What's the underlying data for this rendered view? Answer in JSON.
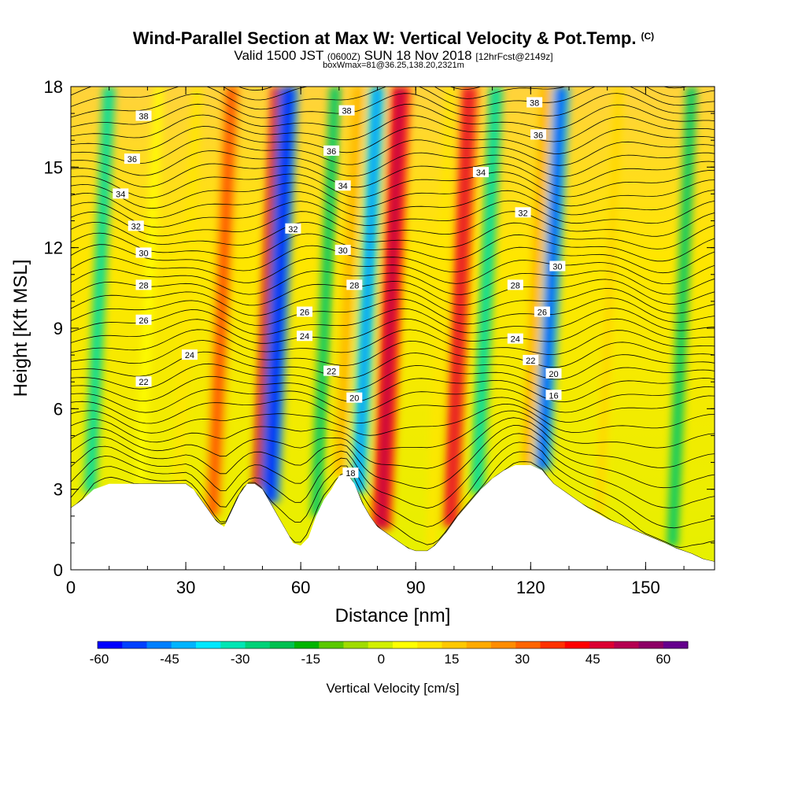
{
  "title": {
    "main": "Wind-Parallel Section at Max W: Vertical Velocity & Pot.Temp.",
    "copyright": "(C)",
    "valid_prefix": "Valid 1500 JST",
    "valid_utc": "(0600Z)",
    "valid_date": "SUN 18 Nov 2018",
    "forecast": "[12hrFcst@2149z]",
    "box_info": "boxWmax=81@36.25,138.20,2321m"
  },
  "chart_data": {
    "type": "heatmap",
    "xlabel": "Distance [nm]",
    "ylabel": "Height [Kft MSL]",
    "xlim": [
      0,
      168
    ],
    "ylim": [
      0,
      18
    ],
    "x_ticks": [
      0,
      30,
      60,
      90,
      120,
      150
    ],
    "y_ticks": [
      0,
      3,
      6,
      9,
      12,
      15,
      18
    ],
    "colorbar": {
      "label": "Vertical Velocity [cm/s]",
      "ticks": [
        -60,
        -45,
        -30,
        -15,
        0,
        15,
        30,
        45,
        60
      ],
      "colors": [
        "#0000ff",
        "#0040ff",
        "#0080ff",
        "#00b4ff",
        "#00e8ff",
        "#00e6b4",
        "#00d278",
        "#00c050",
        "#00b400",
        "#5ac800",
        "#a0dc00",
        "#d2f000",
        "#ffff00",
        "#ffe600",
        "#ffc800",
        "#ffaa00",
        "#ff8c00",
        "#ff6400",
        "#ff3200",
        "#ff0000",
        "#dc0032",
        "#b40050",
        "#8c0064",
        "#64008c"
      ]
    },
    "updrafts": [
      {
        "x": 5,
        "w": -22
      },
      {
        "x": 18,
        "w": 8
      },
      {
        "x": 28,
        "w": 12
      },
      {
        "x": 37,
        "w": 32
      },
      {
        "x": 50,
        "w": 50
      },
      {
        "x": 52,
        "w": -45
      },
      {
        "x": 64,
        "w": -18
      },
      {
        "x": 70,
        "w": 20
      },
      {
        "x": 75,
        "w": -38
      },
      {
        "x": 81,
        "w": 48
      },
      {
        "x": 94,
        "w": 12
      },
      {
        "x": 99,
        "w": 40
      },
      {
        "x": 106,
        "w": -25
      },
      {
        "x": 119,
        "w": 22
      },
      {
        "x": 123,
        "w": -40
      },
      {
        "x": 138,
        "w": 15
      },
      {
        "x": 157,
        "w": -18
      }
    ],
    "terrain_kft": [
      [
        0,
        2.3
      ],
      [
        3,
        2.6
      ],
      [
        6,
        3.0
      ],
      [
        10,
        3.2
      ],
      [
        20,
        3.2
      ],
      [
        30,
        3.2
      ],
      [
        32,
        3.0
      ],
      [
        34,
        2.6
      ],
      [
        36,
        2.2
      ],
      [
        38,
        1.8
      ],
      [
        40,
        1.6
      ],
      [
        42,
        2.2
      ],
      [
        44,
        2.8
      ],
      [
        46,
        3.2
      ],
      [
        48,
        3.2
      ],
      [
        50,
        3.0
      ],
      [
        52,
        2.5
      ],
      [
        54,
        2.0
      ],
      [
        56,
        1.5
      ],
      [
        58,
        1.0
      ],
      [
        60,
        0.9
      ],
      [
        62,
        1.2
      ],
      [
        64,
        2.0
      ],
      [
        66,
        2.6
      ],
      [
        68,
        3.0
      ],
      [
        70,
        3.5
      ],
      [
        72,
        3.6
      ],
      [
        74,
        3.2
      ],
      [
        76,
        2.5
      ],
      [
        78,
        2.0
      ],
      [
        80,
        1.6
      ],
      [
        84,
        1.2
      ],
      [
        88,
        0.8
      ],
      [
        90,
        0.7
      ],
      [
        93,
        0.7
      ],
      [
        95,
        0.9
      ],
      [
        98,
        1.4
      ],
      [
        101,
        2.0
      ],
      [
        104,
        2.5
      ],
      [
        107,
        3.0
      ],
      [
        110,
        3.4
      ],
      [
        113,
        3.7
      ],
      [
        116,
        3.9
      ],
      [
        120,
        3.9
      ],
      [
        123,
        3.7
      ],
      [
        126,
        3.2
      ],
      [
        130,
        2.8
      ],
      [
        135,
        2.3
      ],
      [
        140,
        1.9
      ],
      [
        145,
        1.6
      ],
      [
        150,
        1.3
      ],
      [
        155,
        1.0
      ],
      [
        158,
        0.8
      ],
      [
        162,
        0.6
      ],
      [
        165,
        0.4
      ],
      [
        168,
        0.3
      ]
    ],
    "isentropes_k": [
      16,
      18,
      20,
      22,
      24,
      26,
      28,
      30,
      32,
      34,
      36,
      38
    ],
    "theta_labels": [
      {
        "text": "38",
        "x": 19,
        "y": 16.9
      },
      {
        "text": "36",
        "x": 16,
        "y": 15.3
      },
      {
        "text": "34",
        "x": 13,
        "y": 14.0
      },
      {
        "text": "32",
        "x": 17,
        "y": 12.8
      },
      {
        "text": "30",
        "x": 19,
        "y": 11.8
      },
      {
        "text": "28",
        "x": 19,
        "y": 10.6
      },
      {
        "text": "26",
        "x": 19,
        "y": 9.3
      },
      {
        "text": "24",
        "x": 31,
        "y": 8.0
      },
      {
        "text": "22",
        "x": 19,
        "y": 7.0
      },
      {
        "text": "32",
        "x": 58,
        "y": 12.7
      },
      {
        "text": "26",
        "x": 61,
        "y": 9.6
      },
      {
        "text": "24",
        "x": 61,
        "y": 8.7
      },
      {
        "text": "22",
        "x": 68,
        "y": 7.4
      },
      {
        "text": "20",
        "x": 74,
        "y": 6.4
      },
      {
        "text": "18",
        "x": 73,
        "y": 3.6
      },
      {
        "text": "38",
        "x": 72,
        "y": 17.1
      },
      {
        "text": "36",
        "x": 68,
        "y": 15.6
      },
      {
        "text": "34",
        "x": 71,
        "y": 14.3
      },
      {
        "text": "30",
        "x": 71,
        "y": 11.9
      },
      {
        "text": "28",
        "x": 74,
        "y": 10.6
      },
      {
        "text": "34",
        "x": 107,
        "y": 14.8
      },
      {
        "text": "32",
        "x": 118,
        "y": 13.3
      },
      {
        "text": "28",
        "x": 116,
        "y": 10.6
      },
      {
        "text": "24",
        "x": 116,
        "y": 8.6
      },
      {
        "text": "36",
        "x": 122,
        "y": 16.2
      },
      {
        "text": "38",
        "x": 121,
        "y": 17.4
      },
      {
        "text": "30",
        "x": 127,
        "y": 11.3
      },
      {
        "text": "26",
        "x": 123,
        "y": 9.6
      },
      {
        "text": "22",
        "x": 120,
        "y": 7.8
      },
      {
        "text": "20",
        "x": 126,
        "y": 7.3
      },
      {
        "text": "16",
        "x": 126,
        "y": 6.5
      }
    ]
  }
}
